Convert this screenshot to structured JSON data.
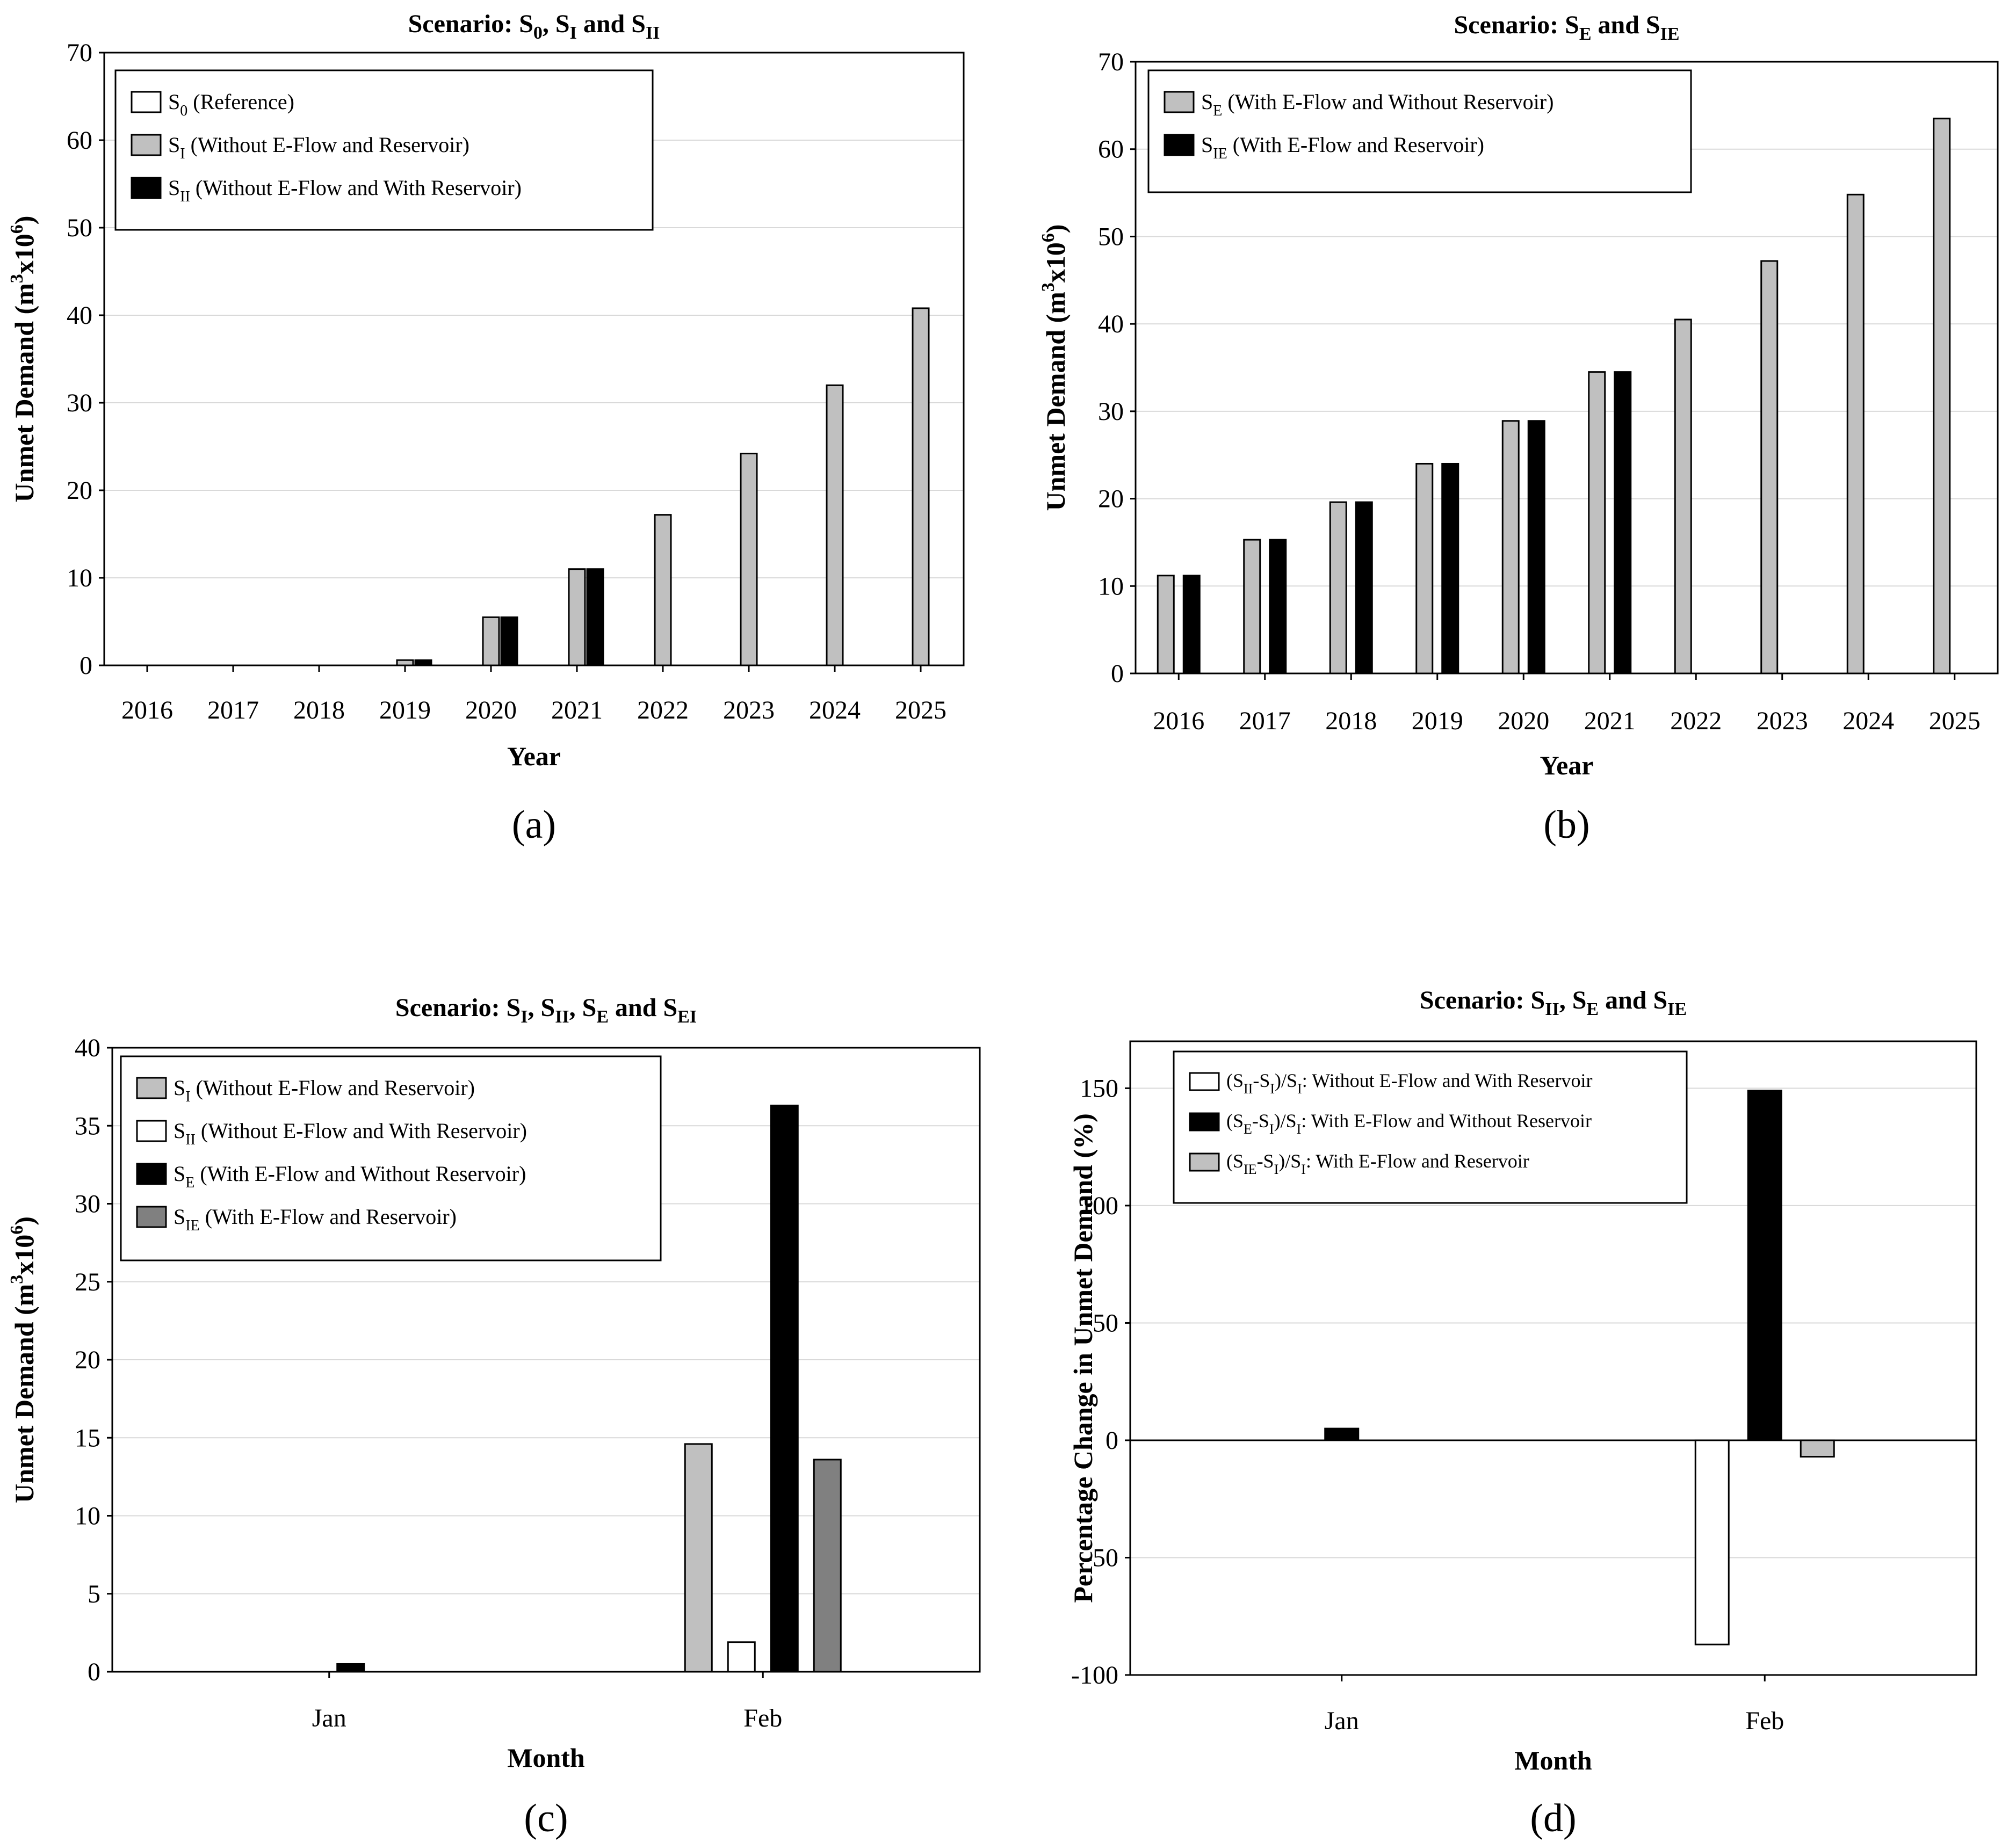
{
  "colors": {
    "white": "#ffffff",
    "light_gray": "#c0c0c0",
    "medium_gray": "#808080",
    "black": "#000000",
    "grid": "#d9d9d9"
  },
  "chart_data": [
    {
      "id": "a",
      "type": "bar",
      "title_parts": [
        {
          "t": "Scenario: S"
        },
        {
          "t": "0",
          "sub": true
        },
        {
          "t": ", S"
        },
        {
          "t": "I",
          "sub": true
        },
        {
          "t": " and S"
        },
        {
          "t": "II",
          "sub": true
        }
      ],
      "panel_label": "(a)",
      "xlabel": "Year",
      "ylabel_parts": [
        {
          "t": "Unmet Demand (m"
        },
        {
          "t": "3",
          "sup": true
        },
        {
          "t": "x10"
        },
        {
          "t": "6",
          "sup": true
        },
        {
          "t": ")"
        }
      ],
      "ylim": [
        0,
        70
      ],
      "yticks": [
        0,
        10,
        20,
        30,
        40,
        50,
        60,
        70
      ],
      "grid": true,
      "legend_position": "top-left",
      "categories": [
        "2016",
        "2017",
        "2018",
        "2019",
        "2020",
        "2021",
        "2022",
        "2023",
        "2024",
        "2025"
      ],
      "series": [
        {
          "name_parts": [
            {
              "t": "S"
            },
            {
              "t": "0",
              "sub": true
            },
            {
              "t": " (Reference)"
            }
          ],
          "color": "#ffffff",
          "values": [
            0,
            0,
            0,
            0,
            0,
            0,
            0,
            0,
            0,
            0
          ]
        },
        {
          "name_parts": [
            {
              "t": "S"
            },
            {
              "t": "I",
              "sub": true
            },
            {
              "t": " (Without E-Flow and Reservoir)"
            }
          ],
          "color": "#c0c0c0",
          "values": [
            0,
            0,
            0,
            0.6,
            5.5,
            11.0,
            17.2,
            24.2,
            32.0,
            40.8
          ]
        },
        {
          "name_parts": [
            {
              "t": "S"
            },
            {
              "t": "II",
              "sub": true
            },
            {
              "t": " (Without E-Flow and With Reservoir)"
            }
          ],
          "color": "#000000",
          "values": [
            0,
            0,
            0,
            0.6,
            5.5,
            11.0,
            0,
            0,
            0,
            0
          ]
        }
      ]
    },
    {
      "id": "b",
      "type": "bar",
      "title_parts": [
        {
          "t": "Scenario: S"
        },
        {
          "t": "E",
          "sub": true
        },
        {
          "t": " and S"
        },
        {
          "t": "IE",
          "sub": true
        }
      ],
      "panel_label": "(b)",
      "xlabel": "Year",
      "ylabel_parts": [
        {
          "t": "Unmet Demand (m"
        },
        {
          "t": "3",
          "sup": true
        },
        {
          "t": "x10"
        },
        {
          "t": "6",
          "sup": true
        },
        {
          "t": ")"
        }
      ],
      "ylim": [
        0,
        70
      ],
      "yticks": [
        0,
        10,
        20,
        30,
        40,
        50,
        60,
        70
      ],
      "grid": true,
      "legend_position": "top-left",
      "categories": [
        "2016",
        "2017",
        "2018",
        "2019",
        "2020",
        "2021",
        "2022",
        "2023",
        "2024",
        "2025"
      ],
      "series": [
        {
          "name_parts": [
            {
              "t": "S"
            },
            {
              "t": "E",
              "sub": true
            },
            {
              "t": " (With E-Flow and  Without Reservoir)"
            }
          ],
          "color": "#c0c0c0",
          "values": [
            11.2,
            15.3,
            19.6,
            24.0,
            28.9,
            34.5,
            40.5,
            47.2,
            54.8,
            63.5
          ]
        },
        {
          "name_parts": [
            {
              "t": "S"
            },
            {
              "t": "IE",
              "sub": true
            },
            {
              "t": " (With E-Flow and Reservoir)"
            }
          ],
          "color": "#000000",
          "values": [
            11.2,
            15.3,
            19.6,
            24.0,
            28.9,
            34.5,
            0,
            0,
            0,
            0
          ]
        }
      ]
    },
    {
      "id": "c",
      "type": "bar",
      "title_parts": [
        {
          "t": "Scenario: S"
        },
        {
          "t": "I",
          "sub": true
        },
        {
          "t": ", S"
        },
        {
          "t": "II",
          "sub": true
        },
        {
          "t": ", S"
        },
        {
          "t": "E",
          "sub": true
        },
        {
          "t": " and S"
        },
        {
          "t": "EI",
          "sub": true
        }
      ],
      "panel_label": "(c)",
      "xlabel": "Month",
      "ylabel_parts": [
        {
          "t": "Unmet Demand (m"
        },
        {
          "t": "3",
          "sup": true
        },
        {
          "t": "x10"
        },
        {
          "t": "6",
          "sup": true
        },
        {
          "t": ")"
        }
      ],
      "ylim": [
        0,
        40
      ],
      "yticks": [
        0,
        5,
        10,
        15,
        20,
        25,
        30,
        35,
        40
      ],
      "grid": true,
      "legend_position": "top-left",
      "categories": [
        "Jan",
        "Feb"
      ],
      "series": [
        {
          "name_parts": [
            {
              "t": "S"
            },
            {
              "t": "I",
              "sub": true
            },
            {
              "t": " (Without E-Flow and Reservoir)"
            }
          ],
          "color": "#c0c0c0",
          "values": [
            0,
            14.6
          ]
        },
        {
          "name_parts": [
            {
              "t": "S"
            },
            {
              "t": "II",
              "sub": true
            },
            {
              "t": " (Without E-Flow and With Reservoir)"
            }
          ],
          "color": "#ffffff",
          "values": [
            0,
            1.9
          ]
        },
        {
          "name_parts": [
            {
              "t": "S"
            },
            {
              "t": "E",
              "sub": true
            },
            {
              "t": " (With E-Flow and Without Reservoir)"
            }
          ],
          "color": "#000000",
          "values": [
            0.5,
            36.3
          ]
        },
        {
          "name_parts": [
            {
              "t": "S"
            },
            {
              "t": "IE",
              "sub": true
            },
            {
              "t": " (With E-Flow and Reservoir)"
            }
          ],
          "color": "#808080",
          "values": [
            0,
            13.6
          ]
        }
      ]
    },
    {
      "id": "d",
      "type": "bar",
      "title_parts": [
        {
          "t": "Scenario: S"
        },
        {
          "t": "II",
          "sub": true
        },
        {
          "t": ", S"
        },
        {
          "t": "E",
          "sub": true
        },
        {
          "t": " and S"
        },
        {
          "t": "IE",
          "sub": true
        }
      ],
      "panel_label": "(d)",
      "xlabel": "Month",
      "ylabel_parts": [
        {
          "t": "Percentage Change in Unmet Demand (%)"
        }
      ],
      "ylim": [
        -100,
        170
      ],
      "yticks": [
        -100,
        -50,
        0,
        50,
        100,
        150
      ],
      "grid": true,
      "legend_position": "top-left",
      "categories": [
        "Jan",
        "Feb"
      ],
      "series": [
        {
          "name_parts": [
            {
              "t": "(S"
            },
            {
              "t": "II",
              "sub": true
            },
            {
              "t": "-S"
            },
            {
              "t": "I",
              "sub": true
            },
            {
              "t": ")/S"
            },
            {
              "t": "I",
              "sub": true
            },
            {
              "t": ": Without E-Flow and With Reservoir"
            }
          ],
          "color": "#ffffff",
          "values": [
            0,
            -87
          ]
        },
        {
          "name_parts": [
            {
              "t": "(S"
            },
            {
              "t": "E",
              "sub": true
            },
            {
              "t": "-S"
            },
            {
              "t": "I",
              "sub": true
            },
            {
              "t": ")/S"
            },
            {
              "t": "I",
              "sub": true
            },
            {
              "t": ": With E-Flow and Without Reservoir"
            }
          ],
          "color": "#000000",
          "values": [
            5,
            149
          ]
        },
        {
          "name_parts": [
            {
              "t": "(S"
            },
            {
              "t": "IE",
              "sub": true
            },
            {
              "t": "-S"
            },
            {
              "t": "I",
              "sub": true
            },
            {
              "t": ")/S"
            },
            {
              "t": "I",
              "sub": true
            },
            {
              "t": ": With E-Flow and Reservoir"
            }
          ],
          "color": "#c0c0c0",
          "values": [
            0,
            -7
          ]
        }
      ]
    }
  ]
}
